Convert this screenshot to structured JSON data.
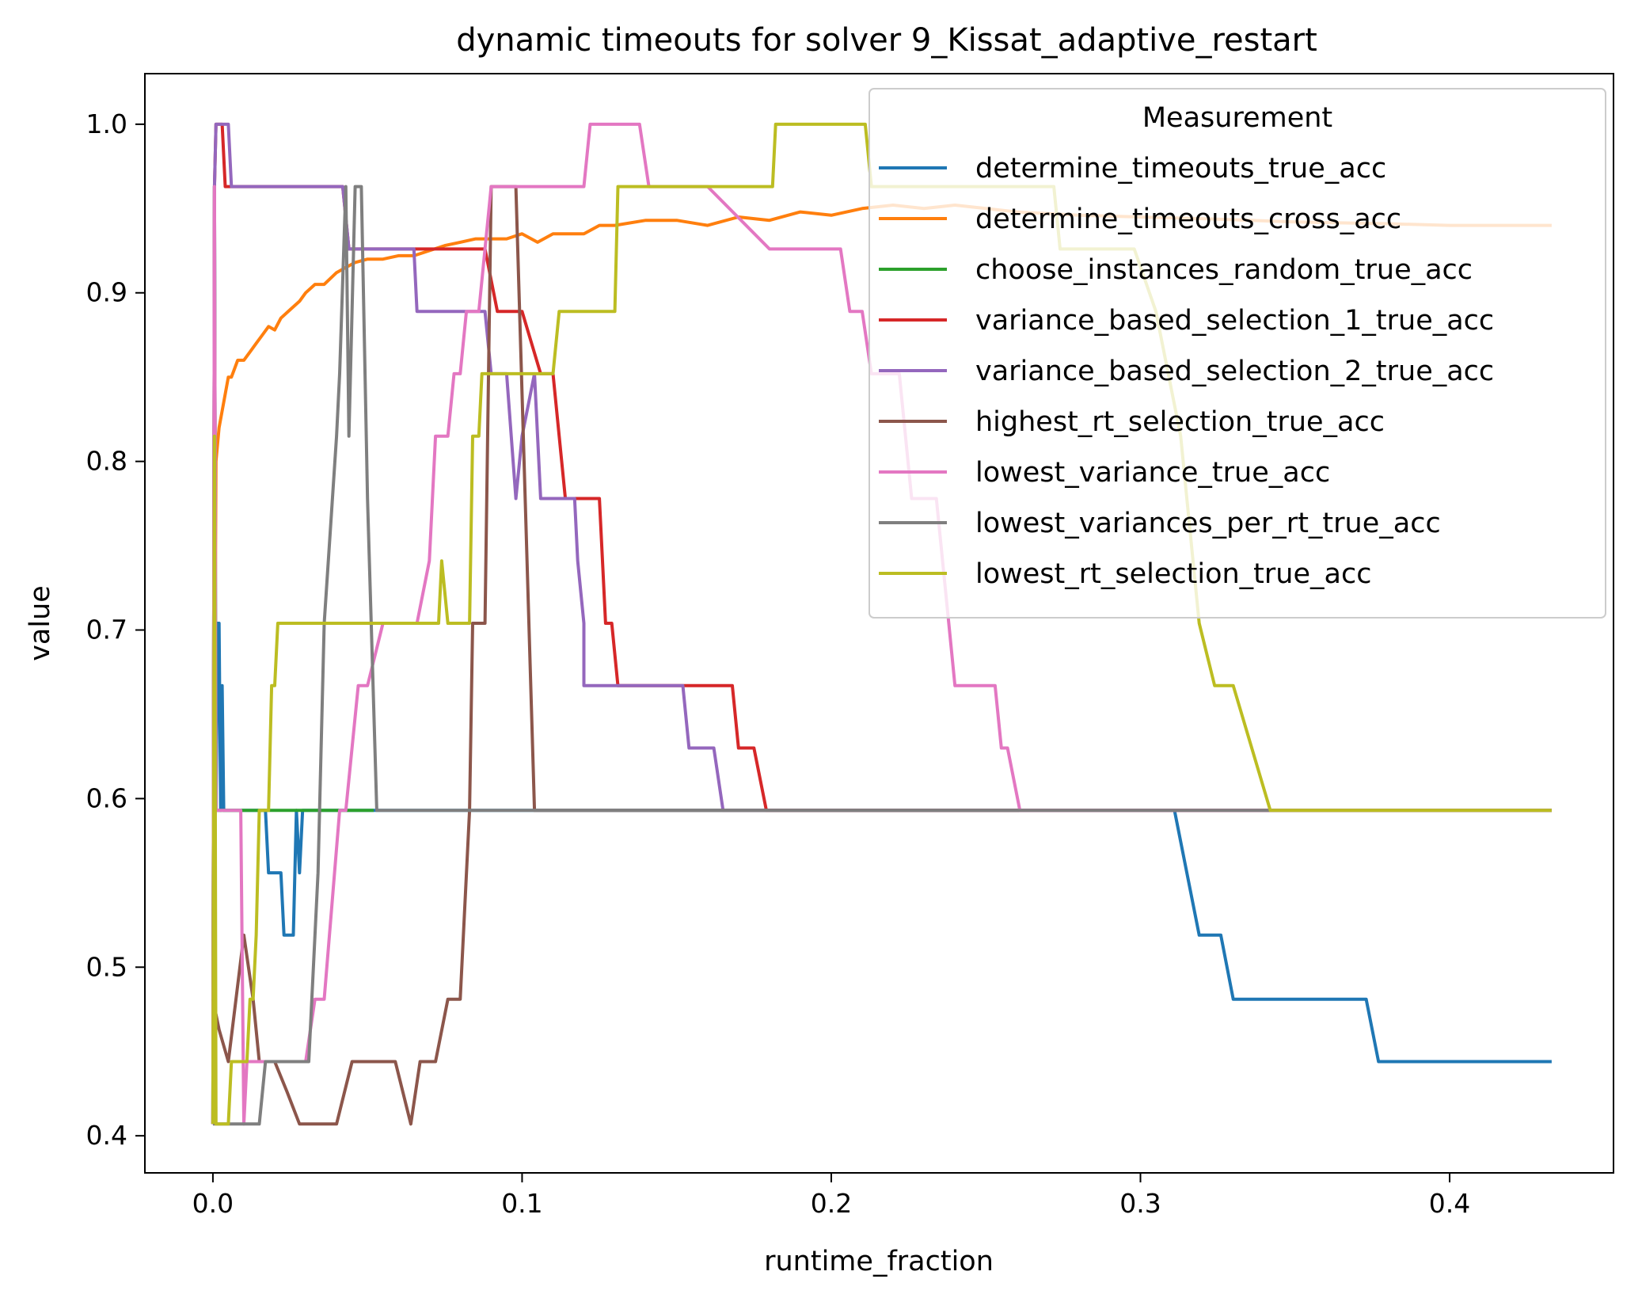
{
  "chart_data": {
    "type": "line",
    "title": "dynamic timeouts for solver 9_Kissat_adaptive_restart",
    "xlabel": "runtime_fraction",
    "ylabel": "value",
    "xlim": [
      -0.022,
      0.453
    ],
    "ylim": [
      0.378,
      1.03
    ],
    "xticks": [
      0.0,
      0.1,
      0.2,
      0.3,
      0.4
    ],
    "xtick_labels": [
      "0.0",
      "0.1",
      "0.2",
      "0.3",
      "0.4"
    ],
    "yticks": [
      0.4,
      0.5,
      0.6,
      0.7,
      0.8,
      0.9,
      1.0
    ],
    "ytick_labels": [
      "0.4",
      "0.5",
      "0.6",
      "0.7",
      "0.8",
      "0.9",
      "1.0"
    ],
    "grid": false,
    "legend": {
      "title": "Measurement",
      "position": "top-right"
    },
    "series": [
      {
        "name": "determine_timeouts_true_acc",
        "color": "#1f77b4",
        "points": [
          [
            0.0,
            0.407
          ],
          [
            0.0005,
            0.963
          ],
          [
            0.001,
            0.593
          ],
          [
            0.0015,
            0.704
          ],
          [
            0.002,
            0.704
          ],
          [
            0.0025,
            0.593
          ],
          [
            0.003,
            0.667
          ],
          [
            0.0035,
            0.593
          ],
          [
            0.017,
            0.593
          ],
          [
            0.018,
            0.556
          ],
          [
            0.022,
            0.556
          ],
          [
            0.023,
            0.519
          ],
          [
            0.026,
            0.519
          ],
          [
            0.027,
            0.593
          ],
          [
            0.028,
            0.556
          ],
          [
            0.029,
            0.593
          ],
          [
            0.03,
            0.593
          ],
          [
            0.311,
            0.593
          ],
          [
            0.319,
            0.519
          ],
          [
            0.326,
            0.519
          ],
          [
            0.33,
            0.481
          ],
          [
            0.373,
            0.481
          ],
          [
            0.377,
            0.444
          ],
          [
            0.433,
            0.444
          ]
        ]
      },
      {
        "name": "determine_timeouts_cross_acc",
        "color": "#ff7f0e",
        "points": [
          [
            0.0,
            0.407
          ],
          [
            0.001,
            0.8
          ],
          [
            0.002,
            0.82
          ],
          [
            0.003,
            0.83
          ],
          [
            0.004,
            0.84
          ],
          [
            0.005,
            0.85
          ],
          [
            0.006,
            0.85
          ],
          [
            0.007,
            0.855
          ],
          [
            0.008,
            0.86
          ],
          [
            0.01,
            0.86
          ],
          [
            0.012,
            0.865
          ],
          [
            0.014,
            0.87
          ],
          [
            0.016,
            0.875
          ],
          [
            0.018,
            0.88
          ],
          [
            0.02,
            0.878
          ],
          [
            0.022,
            0.885
          ],
          [
            0.025,
            0.89
          ],
          [
            0.028,
            0.895
          ],
          [
            0.03,
            0.9
          ],
          [
            0.033,
            0.905
          ],
          [
            0.036,
            0.905
          ],
          [
            0.04,
            0.912
          ],
          [
            0.043,
            0.915
          ],
          [
            0.046,
            0.918
          ],
          [
            0.05,
            0.92
          ],
          [
            0.055,
            0.92
          ],
          [
            0.06,
            0.922
          ],
          [
            0.065,
            0.922
          ],
          [
            0.07,
            0.925
          ],
          [
            0.075,
            0.928
          ],
          [
            0.08,
            0.93
          ],
          [
            0.085,
            0.932
          ],
          [
            0.09,
            0.932
          ],
          [
            0.095,
            0.932
          ],
          [
            0.1,
            0.935
          ],
          [
            0.105,
            0.93
          ],
          [
            0.11,
            0.935
          ],
          [
            0.12,
            0.935
          ],
          [
            0.125,
            0.94
          ],
          [
            0.13,
            0.94
          ],
          [
            0.14,
            0.943
          ],
          [
            0.15,
            0.943
          ],
          [
            0.16,
            0.94
          ],
          [
            0.17,
            0.945
          ],
          [
            0.18,
            0.943
          ],
          [
            0.19,
            0.948
          ],
          [
            0.2,
            0.946
          ],
          [
            0.21,
            0.95
          ],
          [
            0.22,
            0.952
          ],
          [
            0.23,
            0.95
          ],
          [
            0.24,
            0.952
          ],
          [
            0.25,
            0.95
          ],
          [
            0.26,
            0.948
          ],
          [
            0.28,
            0.946
          ],
          [
            0.3,
            0.945
          ],
          [
            0.32,
            0.944
          ],
          [
            0.35,
            0.942
          ],
          [
            0.38,
            0.941
          ],
          [
            0.4,
            0.94
          ],
          [
            0.433,
            0.94
          ]
        ]
      },
      {
        "name": "choose_instances_random_true_acc",
        "color": "#2ca02c",
        "points": [
          [
            0.0,
            0.407
          ],
          [
            0.0005,
            0.963
          ],
          [
            0.001,
            0.593
          ],
          [
            0.052,
            0.593
          ]
        ]
      },
      {
        "name": "variance_based_selection_1_true_acc",
        "color": "#d62728",
        "points": [
          [
            0.0,
            0.407
          ],
          [
            0.0005,
            0.963
          ],
          [
            0.001,
            1.0
          ],
          [
            0.003,
            1.0
          ],
          [
            0.004,
            0.963
          ],
          [
            0.042,
            0.963
          ],
          [
            0.044,
            0.926
          ],
          [
            0.088,
            0.926
          ],
          [
            0.092,
            0.889
          ],
          [
            0.1,
            0.889
          ],
          [
            0.106,
            0.852
          ],
          [
            0.11,
            0.852
          ],
          [
            0.112,
            0.815
          ],
          [
            0.114,
            0.778
          ],
          [
            0.125,
            0.778
          ],
          [
            0.127,
            0.704
          ],
          [
            0.129,
            0.704
          ],
          [
            0.131,
            0.667
          ],
          [
            0.168,
            0.667
          ],
          [
            0.17,
            0.63
          ],
          [
            0.175,
            0.63
          ],
          [
            0.179,
            0.593
          ],
          [
            0.433,
            0.593
          ]
        ]
      },
      {
        "name": "variance_based_selection_2_true_acc",
        "color": "#9467bd",
        "points": [
          [
            0.0,
            0.407
          ],
          [
            0.0005,
            0.963
          ],
          [
            0.001,
            1.0
          ],
          [
            0.005,
            1.0
          ],
          [
            0.006,
            0.963
          ],
          [
            0.042,
            0.963
          ],
          [
            0.044,
            0.926
          ],
          [
            0.065,
            0.926
          ],
          [
            0.066,
            0.889
          ],
          [
            0.083,
            0.889
          ],
          [
            0.084,
            0.889
          ],
          [
            0.088,
            0.889
          ],
          [
            0.09,
            0.852
          ],
          [
            0.095,
            0.852
          ],
          [
            0.098,
            0.778
          ],
          [
            0.1,
            0.815
          ],
          [
            0.104,
            0.852
          ],
          [
            0.106,
            0.778
          ],
          [
            0.117,
            0.778
          ],
          [
            0.118,
            0.741
          ],
          [
            0.12,
            0.704
          ],
          [
            0.12,
            0.667
          ],
          [
            0.152,
            0.667
          ],
          [
            0.154,
            0.63
          ],
          [
            0.162,
            0.63
          ],
          [
            0.165,
            0.593
          ],
          [
            0.433,
            0.593
          ]
        ]
      },
      {
        "name": "highest_rt_selection_true_acc",
        "color": "#8c564b",
        "points": [
          [
            0.0,
            0.481
          ],
          [
            0.002,
            0.463
          ],
          [
            0.005,
            0.444
          ],
          [
            0.01,
            0.519
          ],
          [
            0.013,
            0.481
          ],
          [
            0.015,
            0.444
          ],
          [
            0.02,
            0.444
          ],
          [
            0.024,
            0.426
          ],
          [
            0.028,
            0.407
          ],
          [
            0.04,
            0.407
          ],
          [
            0.045,
            0.444
          ],
          [
            0.059,
            0.444
          ],
          [
            0.064,
            0.407
          ],
          [
            0.067,
            0.444
          ],
          [
            0.072,
            0.444
          ],
          [
            0.076,
            0.481
          ],
          [
            0.08,
            0.481
          ],
          [
            0.083,
            0.593
          ],
          [
            0.084,
            0.704
          ],
          [
            0.088,
            0.704
          ],
          [
            0.09,
            0.963
          ],
          [
            0.098,
            0.963
          ],
          [
            0.104,
            0.593
          ],
          [
            0.433,
            0.593
          ]
        ]
      },
      {
        "name": "lowest_variance_true_acc",
        "color": "#e377c2",
        "points": [
          [
            0.0,
            0.407
          ],
          [
            0.0005,
            0.963
          ],
          [
            0.001,
            0.593
          ],
          [
            0.009,
            0.593
          ],
          [
            0.01,
            0.407
          ],
          [
            0.011,
            0.444
          ],
          [
            0.03,
            0.444
          ],
          [
            0.033,
            0.481
          ],
          [
            0.036,
            0.481
          ],
          [
            0.041,
            0.593
          ],
          [
            0.043,
            0.593
          ],
          [
            0.047,
            0.667
          ],
          [
            0.05,
            0.667
          ],
          [
            0.055,
            0.704
          ],
          [
            0.066,
            0.704
          ],
          [
            0.07,
            0.741
          ],
          [
            0.072,
            0.815
          ],
          [
            0.076,
            0.815
          ],
          [
            0.078,
            0.852
          ],
          [
            0.08,
            0.852
          ],
          [
            0.082,
            0.889
          ],
          [
            0.086,
            0.889
          ],
          [
            0.09,
            0.963
          ],
          [
            0.12,
            0.963
          ],
          [
            0.122,
            1.0
          ],
          [
            0.138,
            1.0
          ],
          [
            0.141,
            0.963
          ],
          [
            0.16,
            0.963
          ],
          [
            0.18,
            0.926
          ],
          [
            0.203,
            0.926
          ],
          [
            0.206,
            0.889
          ],
          [
            0.21,
            0.889
          ],
          [
            0.213,
            0.852
          ],
          [
            0.222,
            0.852
          ],
          [
            0.224,
            0.815
          ],
          [
            0.226,
            0.778
          ],
          [
            0.234,
            0.778
          ],
          [
            0.238,
            0.704
          ],
          [
            0.24,
            0.667
          ],
          [
            0.253,
            0.667
          ],
          [
            0.255,
            0.63
          ],
          [
            0.257,
            0.63
          ],
          [
            0.261,
            0.593
          ],
          [
            0.433,
            0.593
          ]
        ]
      },
      {
        "name": "lowest_variances_per_rt_true_acc",
        "color": "#7f7f7f",
        "points": [
          [
            0.0,
            0.407
          ],
          [
            0.015,
            0.407
          ],
          [
            0.017,
            0.444
          ],
          [
            0.031,
            0.444
          ],
          [
            0.034,
            0.556
          ],
          [
            0.036,
            0.704
          ],
          [
            0.04,
            0.815
          ],
          [
            0.041,
            0.852
          ],
          [
            0.043,
            0.963
          ],
          [
            0.044,
            0.815
          ],
          [
            0.046,
            0.963
          ],
          [
            0.048,
            0.963
          ],
          [
            0.05,
            0.778
          ],
          [
            0.053,
            0.593
          ],
          [
            0.433,
            0.593
          ]
        ]
      },
      {
        "name": "lowest_rt_selection_true_acc",
        "color": "#bcbd22",
        "points": [
          [
            0.0,
            0.407
          ],
          [
            0.0005,
            0.815
          ],
          [
            0.001,
            0.407
          ],
          [
            0.005,
            0.407
          ],
          [
            0.006,
            0.444
          ],
          [
            0.011,
            0.444
          ],
          [
            0.012,
            0.481
          ],
          [
            0.013,
            0.481
          ],
          [
            0.014,
            0.519
          ],
          [
            0.015,
            0.593
          ],
          [
            0.018,
            0.593
          ],
          [
            0.019,
            0.667
          ],
          [
            0.02,
            0.667
          ],
          [
            0.021,
            0.704
          ],
          [
            0.073,
            0.704
          ],
          [
            0.074,
            0.741
          ],
          [
            0.076,
            0.704
          ],
          [
            0.083,
            0.704
          ],
          [
            0.084,
            0.815
          ],
          [
            0.086,
            0.815
          ],
          [
            0.087,
            0.852
          ],
          [
            0.11,
            0.852
          ],
          [
            0.112,
            0.889
          ],
          [
            0.13,
            0.889
          ],
          [
            0.131,
            0.963
          ],
          [
            0.181,
            0.963
          ],
          [
            0.182,
            1.0
          ],
          [
            0.211,
            1.0
          ],
          [
            0.213,
            0.963
          ],
          [
            0.272,
            0.963
          ],
          [
            0.274,
            0.926
          ],
          [
            0.298,
            0.926
          ],
          [
            0.305,
            0.889
          ],
          [
            0.313,
            0.815
          ],
          [
            0.319,
            0.704
          ],
          [
            0.324,
            0.667
          ],
          [
            0.33,
            0.667
          ],
          [
            0.342,
            0.593
          ],
          [
            0.433,
            0.593
          ]
        ]
      }
    ]
  }
}
